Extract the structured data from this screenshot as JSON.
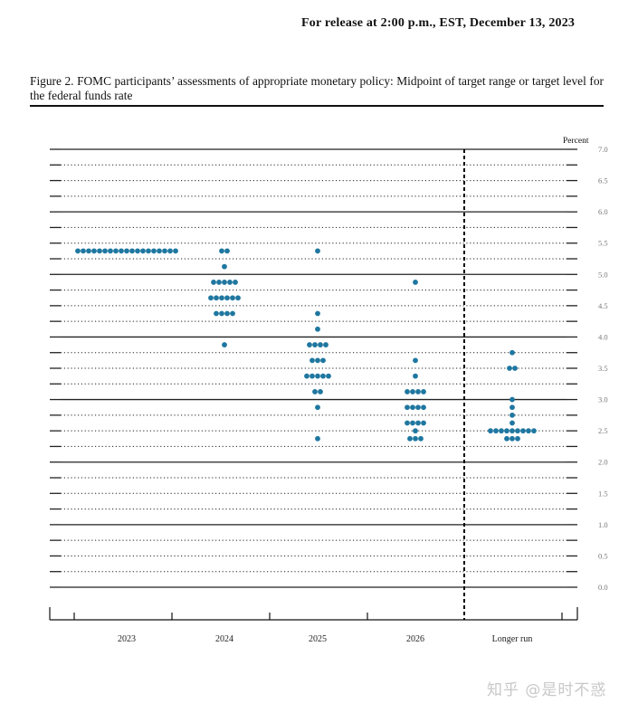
{
  "header": {
    "release_text": "For release at 2:00 p.m., EST, December 13, 2023"
  },
  "caption": {
    "text": "Figure 2.  FOMC participants’ assessments of appropriate monetary policy:  Midpoint of target range or target level for the federal funds rate"
  },
  "watermark": {
    "text": "知乎 @是时不惑"
  },
  "colors": {
    "dot": "#1f77a0",
    "axis": "#111111",
    "gridline": "#222222",
    "tick_label": "#777777"
  },
  "chart_data": {
    "type": "scatter",
    "subtype": "dot-plot",
    "title": "FOMC participants’ assessments of appropriate monetary policy: Midpoint of target range or target level for the federal funds rate",
    "xlabel": "",
    "ylabel": "Percent",
    "ylim": [
      0.0,
      7.0
    ],
    "y_ticks": [
      "0.0",
      "0.5",
      "1.0",
      "1.5",
      "2.0",
      "2.5",
      "3.0",
      "3.5",
      "4.0",
      "4.5",
      "5.0",
      "5.5",
      "6.0",
      "6.5",
      "7.0"
    ],
    "y_axis_position": "right",
    "grid": true,
    "grid_minor_step": 0.25,
    "grid_major_step": 1.0,
    "categories": [
      "2023",
      "2024",
      "2025",
      "2026",
      "Longer run"
    ],
    "separator_before": "Longer run",
    "participants_per_category": 19,
    "series": [
      {
        "name": "2023",
        "points": [
          {
            "rate": 5.375,
            "count": 19
          }
        ]
      },
      {
        "name": "2024",
        "points": [
          {
            "rate": 5.375,
            "count": 2
          },
          {
            "rate": 5.125,
            "count": 1
          },
          {
            "rate": 4.875,
            "count": 5
          },
          {
            "rate": 4.625,
            "count": 6
          },
          {
            "rate": 4.375,
            "count": 4
          },
          {
            "rate": 3.875,
            "count": 1
          }
        ]
      },
      {
        "name": "2025",
        "points": [
          {
            "rate": 5.375,
            "count": 1
          },
          {
            "rate": 4.375,
            "count": 1
          },
          {
            "rate": 4.125,
            "count": 1
          },
          {
            "rate": 3.875,
            "count": 4
          },
          {
            "rate": 3.625,
            "count": 3
          },
          {
            "rate": 3.375,
            "count": 5
          },
          {
            "rate": 3.125,
            "count": 2
          },
          {
            "rate": 2.875,
            "count": 1
          },
          {
            "rate": 2.375,
            "count": 1
          }
        ]
      },
      {
        "name": "2026",
        "points": [
          {
            "rate": 4.875,
            "count": 1
          },
          {
            "rate": 3.625,
            "count": 1
          },
          {
            "rate": 3.375,
            "count": 1
          },
          {
            "rate": 3.125,
            "count": 4
          },
          {
            "rate": 2.875,
            "count": 4
          },
          {
            "rate": 2.625,
            "count": 4
          },
          {
            "rate": 2.5,
            "count": 1
          },
          {
            "rate": 2.375,
            "count": 3
          }
        ]
      },
      {
        "name": "Longer run",
        "points": [
          {
            "rate": 3.75,
            "count": 1
          },
          {
            "rate": 3.5,
            "count": 2
          },
          {
            "rate": 3.0,
            "count": 1
          },
          {
            "rate": 2.875,
            "count": 1
          },
          {
            "rate": 2.75,
            "count": 1
          },
          {
            "rate": 2.625,
            "count": 1
          },
          {
            "rate": 2.5,
            "count": 9
          },
          {
            "rate": 2.375,
            "count": 3
          }
        ]
      }
    ]
  }
}
